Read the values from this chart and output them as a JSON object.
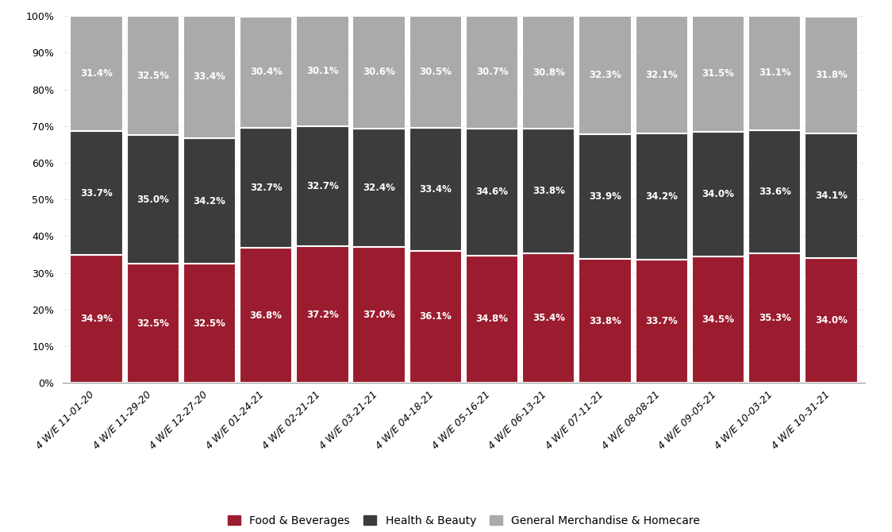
{
  "categories": [
    "4 W/E 11-01-20",
    "4 W/E 11-29-20",
    "4 W/E 12-27-20",
    "4 W/E 01-24-21",
    "4 W/E 02-21-21",
    "4 W/E 03-21-21",
    "4 W/E 04-18-21",
    "4 W/E 05-16-21",
    "4 W/E 06-13-21",
    "4 W/E 07-11-21",
    "4 W/E 08-08-21",
    "4 W/E 09-05-21",
    "4 W/E 10-03-21",
    "4 W/E 10-31-21"
  ],
  "food_beverages": [
    34.9,
    32.5,
    32.5,
    36.8,
    37.2,
    37.0,
    36.1,
    34.8,
    35.4,
    33.8,
    33.7,
    34.5,
    35.3,
    34.0
  ],
  "health_beauty": [
    33.7,
    35.0,
    34.2,
    32.7,
    32.7,
    32.4,
    33.4,
    34.6,
    33.8,
    33.9,
    34.2,
    34.0,
    33.6,
    34.1
  ],
  "general_merch": [
    31.4,
    32.5,
    33.4,
    30.4,
    30.1,
    30.6,
    30.5,
    30.7,
    30.8,
    32.3,
    32.1,
    31.5,
    31.1,
    31.8
  ],
  "color_food": "#9B1C2E",
  "color_health": "#3C3C3C",
  "color_general": "#AAAAAA",
  "label_food": "Food & Beverages",
  "label_health": "Health & Beauty",
  "label_general": "General Merchandise & Homecare",
  "ylim": [
    0,
    100
  ],
  "yticks": [
    0,
    10,
    20,
    30,
    40,
    50,
    60,
    70,
    80,
    90,
    100
  ],
  "background_color": "#FFFFFF",
  "text_color_bar": "#FFFFFF",
  "bar_width": 0.93,
  "label_fontsize": 8.5,
  "tick_fontsize": 9,
  "legend_fontsize": 10,
  "bar_edge_color": "#FFFFFF",
  "bar_linewidth": 1.5
}
